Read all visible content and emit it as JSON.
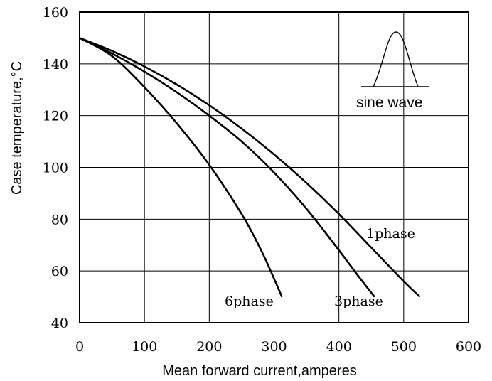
{
  "chart_data": {
    "type": "line",
    "title": "",
    "xlabel": "Mean forward current,amperes",
    "ylabel": "Case temperature,°C",
    "xlim": [
      0,
      600
    ],
    "ylim": [
      40,
      160
    ],
    "xticks": [
      0,
      100,
      200,
      300,
      400,
      500,
      600
    ],
    "yticks": [
      40,
      60,
      80,
      100,
      120,
      140,
      160
    ],
    "grid": true,
    "series": [
      {
        "name": "1phase",
        "x": [
          0,
          50,
          100,
          150,
          200,
          250,
          300,
          350,
          400,
          450,
          500,
          525
        ],
        "y": [
          150,
          145,
          139,
          132,
          124,
          115,
          105,
          94,
          82,
          69,
          56,
          50
        ]
      },
      {
        "name": "3phase",
        "x": [
          0,
          50,
          100,
          150,
          200,
          250,
          300,
          350,
          400,
          430,
          455
        ],
        "y": [
          150,
          144,
          137,
          129,
          120,
          110,
          98,
          84,
          68,
          58,
          50
        ]
      },
      {
        "name": "6phase",
        "x": [
          0,
          50,
          100,
          150,
          200,
          250,
          280,
          300,
          312
        ],
        "y": [
          150,
          143,
          131,
          117,
          101,
          82,
          68,
          57,
          50
        ]
      }
    ],
    "inset": {
      "label": "sine wave",
      "shape": "half-sine"
    }
  }
}
